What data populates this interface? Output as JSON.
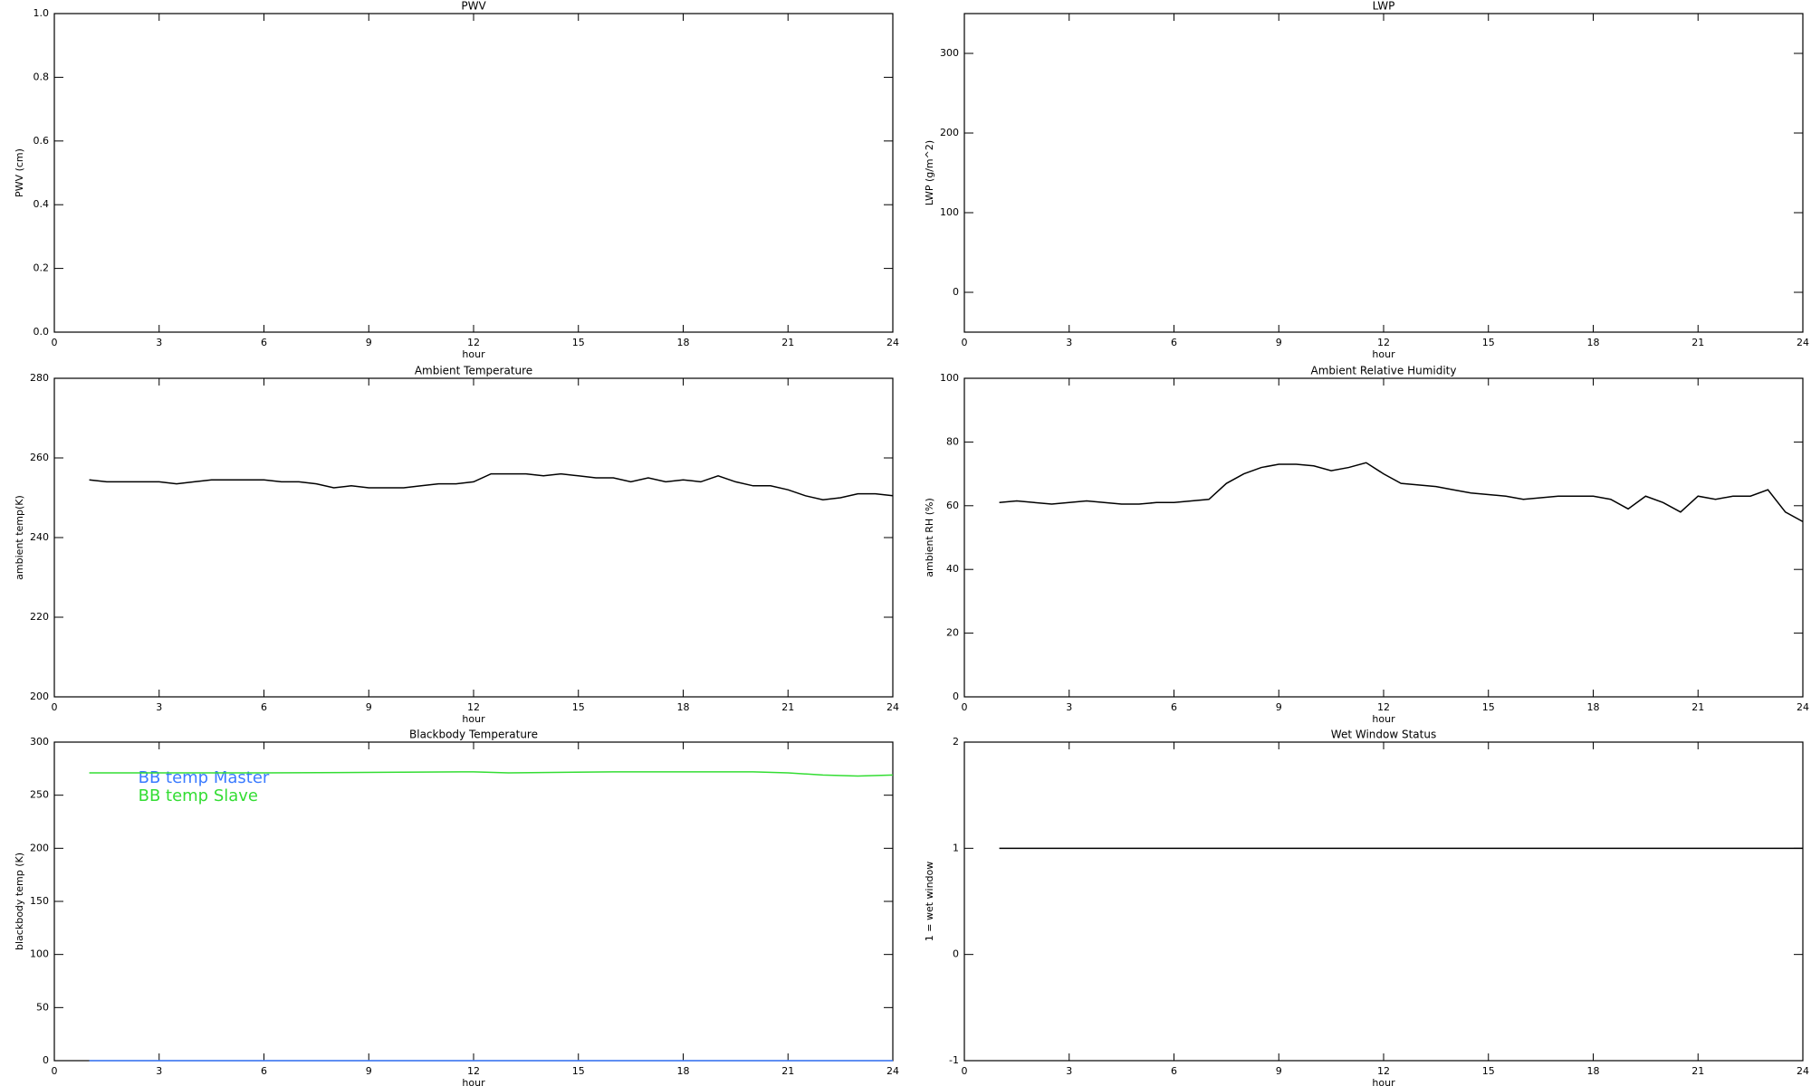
{
  "chart_data": [
    {
      "type": "line",
      "title": "PWV",
      "xlabel": "hour",
      "ylabel": "PWV (cm)",
      "xlim": [
        0,
        24
      ],
      "xticks": [
        0,
        3,
        6,
        9,
        12,
        15,
        18,
        21,
        24
      ],
      "ylim": [
        0,
        1
      ],
      "yticks": [
        {
          "value": 0,
          "label": "0.0"
        },
        0.2,
        0.4,
        0.6,
        0.8,
        {
          "value": 1,
          "label": "1.0"
        }
      ],
      "x": [],
      "series": []
    },
    {
      "type": "line",
      "title": "LWP",
      "xlabel": "hour",
      "ylabel": "LWP (g/m^2)",
      "xlim": [
        0,
        24
      ],
      "xticks": [
        0,
        3,
        6,
        9,
        12,
        15,
        18,
        21,
        24
      ],
      "ylim": [
        -50,
        350
      ],
      "yticks": [
        0,
        100,
        200,
        300
      ],
      "x": [],
      "series": []
    },
    {
      "type": "line",
      "title": "Ambient Temperature",
      "xlabel": "hour",
      "ylabel": "ambient temp(K)",
      "xlim": [
        0,
        24
      ],
      "xticks": [
        0,
        3,
        6,
        9,
        12,
        15,
        18,
        21,
        24
      ],
      "ylim": [
        200,
        280
      ],
      "yticks": [
        200,
        220,
        240,
        260,
        280
      ],
      "x": [
        1,
        1.5,
        2,
        2.5,
        3,
        3.5,
        4,
        4.5,
        5,
        5.5,
        6,
        6.5,
        7,
        7.5,
        8,
        8.5,
        9,
        9.5,
        10,
        10.5,
        11,
        11.5,
        12,
        12.5,
        13,
        13.5,
        14,
        14.5,
        15,
        15.5,
        16,
        16.5,
        17,
        17.5,
        18,
        18.5,
        19,
        19.5,
        20,
        20.5,
        21,
        21.5,
        22,
        22.5,
        23,
        23.5,
        24
      ],
      "series": [
        {
          "color": "#000000",
          "values": [
            254.5,
            254,
            254,
            254,
            254,
            253.5,
            254,
            254.5,
            254.5,
            254.5,
            254.5,
            254,
            254,
            253.5,
            252.5,
            253,
            252.5,
            252.5,
            252.5,
            253,
            253.5,
            253.5,
            254,
            256,
            256,
            256,
            255.5,
            256,
            255.5,
            255,
            255,
            254,
            255,
            254,
            254.5,
            254,
            255.5,
            254,
            253,
            253,
            252,
            250.5,
            249.5,
            250,
            251,
            251,
            250.5
          ]
        }
      ]
    },
    {
      "type": "line",
      "title": "Ambient Relative Humidity",
      "xlabel": "hour",
      "ylabel": "ambient RH (%)",
      "xlim": [
        0,
        24
      ],
      "xticks": [
        0,
        3,
        6,
        9,
        12,
        15,
        18,
        21,
        24
      ],
      "ylim": [
        0,
        100
      ],
      "yticks": [
        0,
        20,
        40,
        60,
        80,
        100
      ],
      "x": [
        1,
        1.5,
        2,
        2.5,
        3,
        3.5,
        4,
        4.5,
        5,
        5.5,
        6,
        6.5,
        7,
        7.5,
        8,
        8.5,
        9,
        9.5,
        10,
        10.5,
        11,
        11.5,
        12,
        12.5,
        13,
        13.5,
        14,
        14.5,
        15,
        15.5,
        16,
        16.5,
        17,
        17.5,
        18,
        18.5,
        19,
        19.5,
        20,
        20.5,
        21,
        21.5,
        22,
        22.5,
        23,
        23.5,
        24
      ],
      "series": [
        {
          "color": "#000000",
          "values": [
            61,
            61.5,
            61,
            60.5,
            61,
            61.5,
            61,
            60.5,
            60.5,
            61,
            61,
            61.5,
            62,
            67,
            70,
            72,
            73,
            73,
            72.5,
            71,
            72,
            73.5,
            70,
            67,
            66.5,
            66,
            65,
            64,
            63.5,
            63,
            62,
            62.5,
            63,
            63,
            63,
            62,
            59,
            63,
            61,
            58,
            63,
            62,
            63,
            63,
            65,
            58,
            55
          ]
        }
      ]
    },
    {
      "type": "line",
      "title": "Blackbody Temperature",
      "xlabel": "hour",
      "ylabel": "blackbody temp (K)",
      "xlim": [
        0,
        24
      ],
      "xticks": [
        0,
        3,
        6,
        9,
        12,
        15,
        18,
        21,
        24
      ],
      "ylim": [
        0,
        300
      ],
      "yticks": [
        0,
        50,
        100,
        150,
        200,
        250,
        300
      ],
      "x": [
        1,
        6,
        12,
        13,
        16,
        20,
        21,
        22,
        23,
        24
      ],
      "series": [
        {
          "name": "BB temp Master",
          "color": "#3b7bff",
          "values": [
            0,
            0,
            0,
            0,
            0,
            0,
            0,
            0,
            0,
            0
          ]
        },
        {
          "name": "BB temp Slave",
          "color": "#33dd33",
          "values": [
            271,
            271,
            272,
            271,
            272,
            272,
            271,
            269,
            268,
            269
          ]
        }
      ],
      "legend": "upper left"
    },
    {
      "type": "line",
      "title": "Wet Window Status",
      "xlabel": "hour",
      "ylabel": "1 = wet window",
      "xlim": [
        0,
        24
      ],
      "xticks": [
        0,
        3,
        6,
        9,
        12,
        15,
        18,
        21,
        24
      ],
      "ylim": [
        -1,
        2
      ],
      "yticks": [
        -1,
        0,
        1,
        2
      ],
      "x": [
        1,
        24
      ],
      "series": [
        {
          "color": "#000000",
          "values": [
            1,
            1
          ]
        }
      ]
    }
  ]
}
